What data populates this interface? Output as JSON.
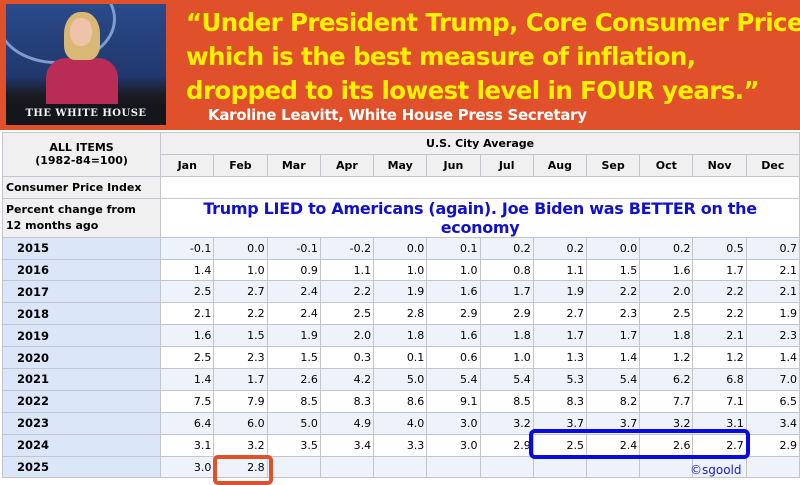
{
  "banner": {
    "photo_caption": "THE WHITE HOUSE",
    "quote_lines": [
      "“Under President Trump, Core Consumer Prices,",
      "which is the best measure of inflation,",
      "dropped to its lowest level in FOUR years.”"
    ],
    "attribution": "Karoline Leavitt, White House Press Secretary",
    "colors": {
      "background": "#e0502a",
      "quote": "#fff000"
    }
  },
  "table": {
    "corner_title": "ALL ITEMS",
    "corner_subtitle": "(1982-84=100)",
    "group_header": "U.S. City Average",
    "months": [
      "Jan",
      "Feb",
      "Mar",
      "Apr",
      "May",
      "Jun",
      "Jul",
      "Aug",
      "Sep",
      "Oct",
      "Nov",
      "Dec"
    ],
    "cpi_label": "Consumer Price Index",
    "pct_label_1": "Percent change from",
    "pct_label_2": "12 months ago",
    "message": "Trump LIED to Americans (again). Joe Biden was BETTER on the economy",
    "rows": [
      {
        "year": "2015",
        "values": [
          "-0.1",
          "0.0",
          "-0.1",
          "-0.2",
          "0.0",
          "0.1",
          "0.2",
          "0.2",
          "0.0",
          "0.2",
          "0.5",
          "0.7"
        ]
      },
      {
        "year": "2016",
        "values": [
          "1.4",
          "1.0",
          "0.9",
          "1.1",
          "1.0",
          "1.0",
          "0.8",
          "1.1",
          "1.5",
          "1.6",
          "1.7",
          "2.1"
        ]
      },
      {
        "year": "2017",
        "values": [
          "2.5",
          "2.7",
          "2.4",
          "2.2",
          "1.9",
          "1.6",
          "1.7",
          "1.9",
          "2.2",
          "2.0",
          "2.2",
          "2.1"
        ]
      },
      {
        "year": "2018",
        "values": [
          "2.1",
          "2.2",
          "2.4",
          "2.5",
          "2.8",
          "2.9",
          "2.9",
          "2.7",
          "2.3",
          "2.5",
          "2.2",
          "1.9"
        ]
      },
      {
        "year": "2019",
        "values": [
          "1.6",
          "1.5",
          "1.9",
          "2.0",
          "1.8",
          "1.6",
          "1.8",
          "1.7",
          "1.7",
          "1.8",
          "2.1",
          "2.3"
        ]
      },
      {
        "year": "2020",
        "values": [
          "2.5",
          "2.3",
          "1.5",
          "0.3",
          "0.1",
          "0.6",
          "1.0",
          "1.3",
          "1.4",
          "1.2",
          "1.2",
          "1.4"
        ]
      },
      {
        "year": "2021",
        "values": [
          "1.4",
          "1.7",
          "2.6",
          "4.2",
          "5.0",
          "5.4",
          "5.4",
          "5.3",
          "5.4",
          "6.2",
          "6.8",
          "7.0"
        ]
      },
      {
        "year": "2022",
        "values": [
          "7.5",
          "7.9",
          "8.5",
          "8.3",
          "8.6",
          "9.1",
          "8.5",
          "8.3",
          "8.2",
          "7.7",
          "7.1",
          "6.5"
        ]
      },
      {
        "year": "2023",
        "values": [
          "6.4",
          "6.0",
          "5.0",
          "4.9",
          "4.0",
          "3.0",
          "3.2",
          "3.7",
          "3.7",
          "3.2",
          "3.1",
          "3.4"
        ]
      },
      {
        "year": "2024",
        "values": [
          "3.1",
          "3.2",
          "3.5",
          "3.4",
          "3.3",
          "3.0",
          "2.9",
          "2.5",
          "2.4",
          "2.6",
          "2.7",
          "2.9"
        ]
      },
      {
        "year": "2025",
        "values": [
          "3.0",
          "2.8",
          "",
          "",
          "",
          "",
          "",
          "",
          "",
          "",
          "",
          ""
        ]
      }
    ]
  },
  "highlights": {
    "orange": "2025 Feb",
    "blue": "2024 Aug-Nov",
    "colors": {
      "orange": "#e0502a",
      "blue": "#0a0ae0"
    }
  },
  "credit": "©sgoold"
}
